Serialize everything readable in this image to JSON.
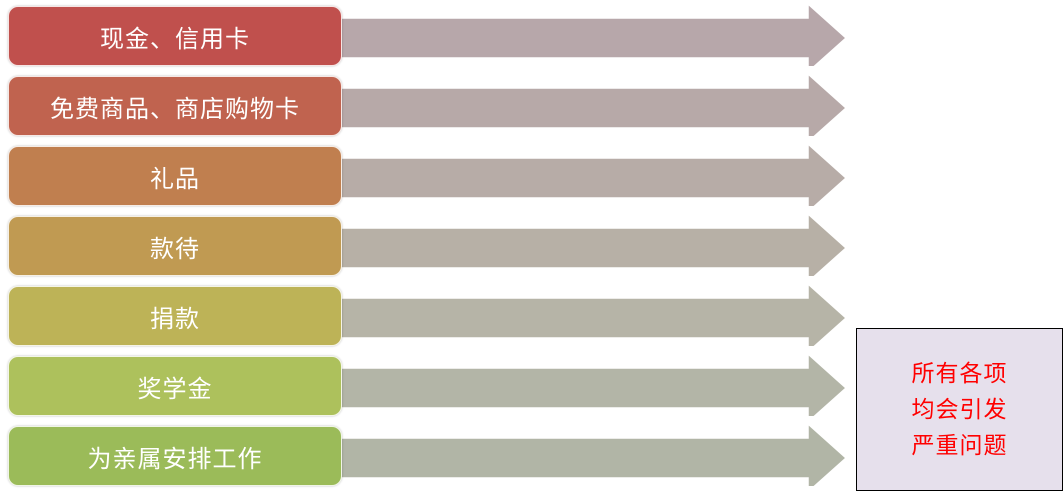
{
  "items": [
    {
      "label": "现金、信用卡",
      "color": "#c0504d"
    },
    {
      "label": "免费商品、商店购物卡",
      "color": "#c0634f"
    },
    {
      "label": "礼品",
      "color": "#c07f4f"
    },
    {
      "label": "款待",
      "color": "#c09a52"
    },
    {
      "label": "捐款",
      "color": "#bdb357"
    },
    {
      "label": "奖学金",
      "color": "#adc15c"
    },
    {
      "label": "为亲属安排工作",
      "color": "#9bbb59"
    }
  ],
  "note": {
    "lines": [
      "所有各项",
      "均会引发",
      "严重问题"
    ],
    "text_color": "#ff0000",
    "background": "#e6e0ec"
  },
  "arrow_colors": [
    "#b7a7aa",
    "#b7a9a8",
    "#b7aca7",
    "#b7b0a6",
    "#b6b4a7",
    "#b3b5a7",
    "#b1b5a6"
  ]
}
